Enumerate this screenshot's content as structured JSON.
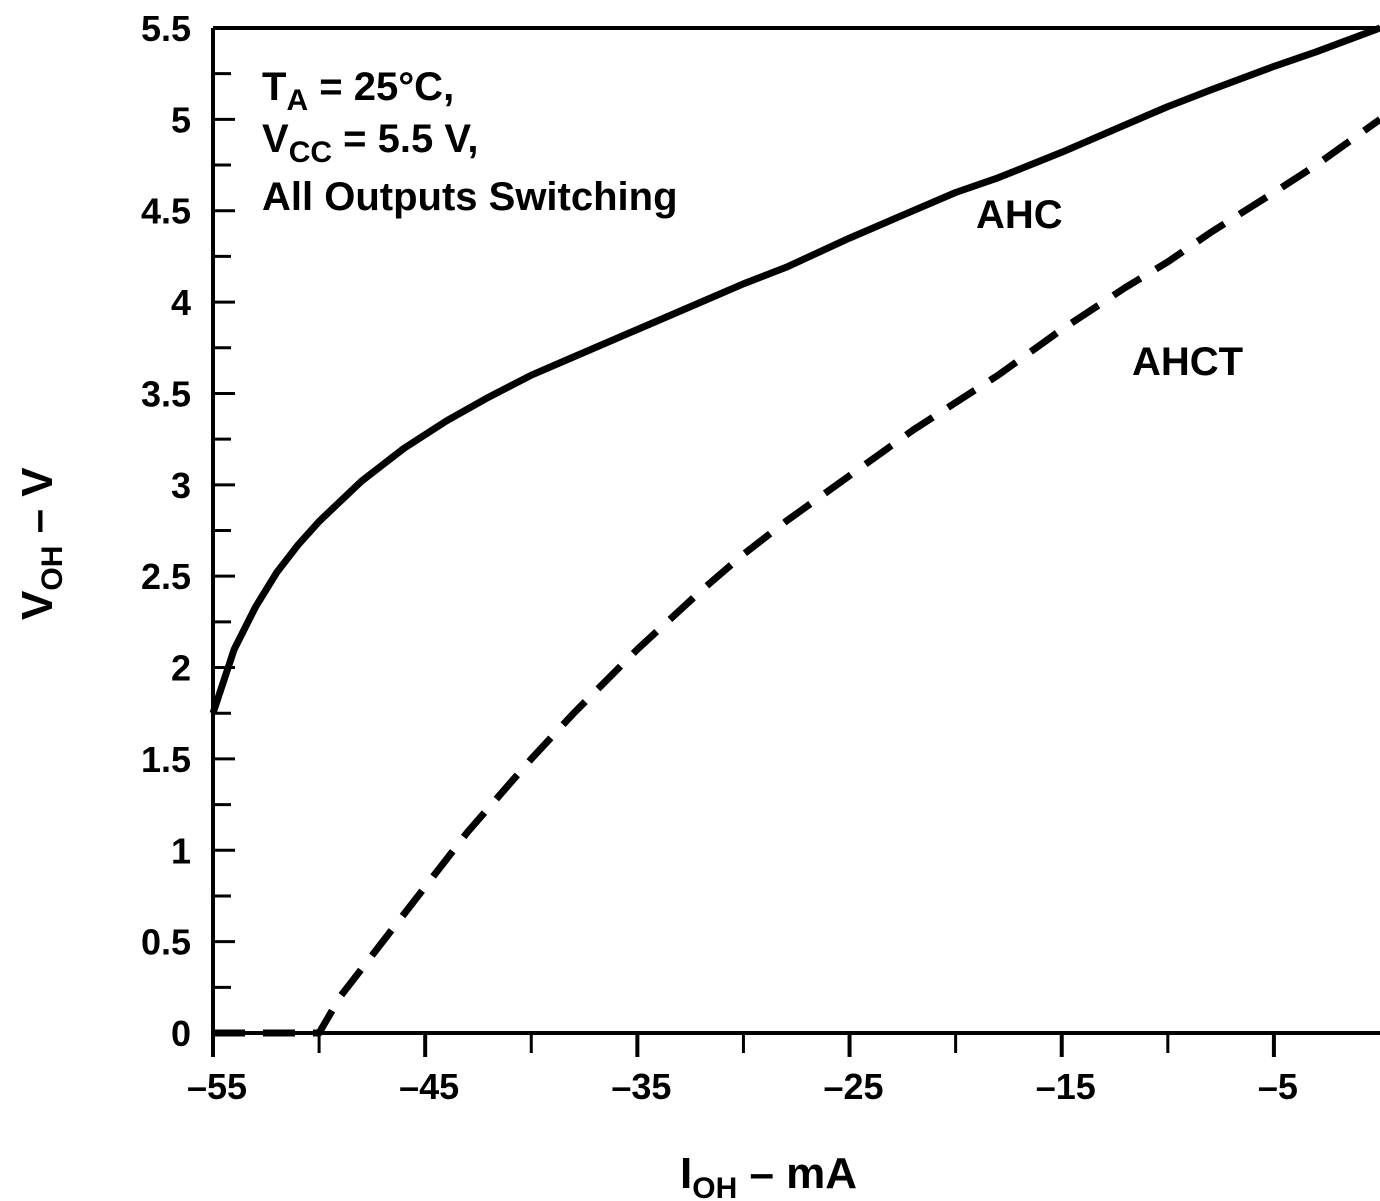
{
  "chart_data": {
    "type": "line",
    "title": "",
    "xlabel": {
      "main": "I",
      "sub": "OH",
      "rest": " – mA"
    },
    "ylabel": {
      "main": "V",
      "sub": "OH",
      "rest": " – V"
    },
    "xlim": [
      -55,
      0
    ],
    "ylim": [
      0,
      5.5
    ],
    "x_ticks": [
      -55,
      -45,
      -35,
      -25,
      -15,
      -5
    ],
    "x_tick_labels": [
      "–55",
      "–45",
      "–35",
      "–25",
      "–15",
      "–5"
    ],
    "x_minor_ticks": [
      -50,
      -40,
      -30,
      -20,
      -10
    ],
    "y_ticks": [
      0,
      0.5,
      1,
      1.5,
      2,
      2.5,
      3,
      3.5,
      4,
      4.5,
      5,
      5.5
    ],
    "y_tick_labels": [
      "0",
      "0.5",
      "1",
      "1.5",
      "2",
      "2.5",
      "3",
      "3.5",
      "4",
      "4.5",
      "5",
      "5.5"
    ],
    "y_minor_step": 0.25,
    "grid": false,
    "annotation": [
      {
        "main": "T",
        "sub": "A",
        "rest": " = 25°C,"
      },
      {
        "main": "V",
        "sub": "CC",
        "rest": " = 5.5 V,"
      },
      {
        "main": "All Outputs Switching",
        "sub": "",
        "rest": ""
      }
    ],
    "series": [
      {
        "name": "AHC",
        "style": "solid",
        "x": [
          -55,
          -54,
          -53,
          -52,
          -51,
          -50,
          -48,
          -46,
          -44,
          -42,
          -40,
          -38,
          -35,
          -32,
          -30,
          -28,
          -25,
          -22,
          -20,
          -18,
          -15,
          -12,
          -10,
          -8,
          -5,
          -3,
          0
        ],
        "y": [
          1.75,
          2.1,
          2.33,
          2.52,
          2.67,
          2.8,
          3.02,
          3.2,
          3.35,
          3.48,
          3.6,
          3.7,
          3.85,
          4.0,
          4.1,
          4.19,
          4.35,
          4.5,
          4.6,
          4.68,
          4.82,
          4.97,
          5.07,
          5.16,
          5.29,
          5.37,
          5.5
        ]
      },
      {
        "name": "AHCT",
        "style": "dashed",
        "x": [
          -55,
          -50,
          -49,
          -47,
          -45,
          -43,
          -40,
          -38,
          -35,
          -32,
          -30,
          -28,
          -25,
          -22,
          -20,
          -18,
          -15,
          -12,
          -10,
          -8,
          -5,
          -3,
          0
        ],
        "y": [
          0,
          0,
          0.2,
          0.5,
          0.8,
          1.1,
          1.5,
          1.75,
          2.1,
          2.42,
          2.62,
          2.8,
          3.05,
          3.3,
          3.45,
          3.6,
          3.85,
          4.08,
          4.22,
          4.38,
          4.6,
          4.75,
          5.0
        ]
      }
    ],
    "labels": {
      "AHC": "AHC",
      "AHCT": "AHCT"
    }
  }
}
